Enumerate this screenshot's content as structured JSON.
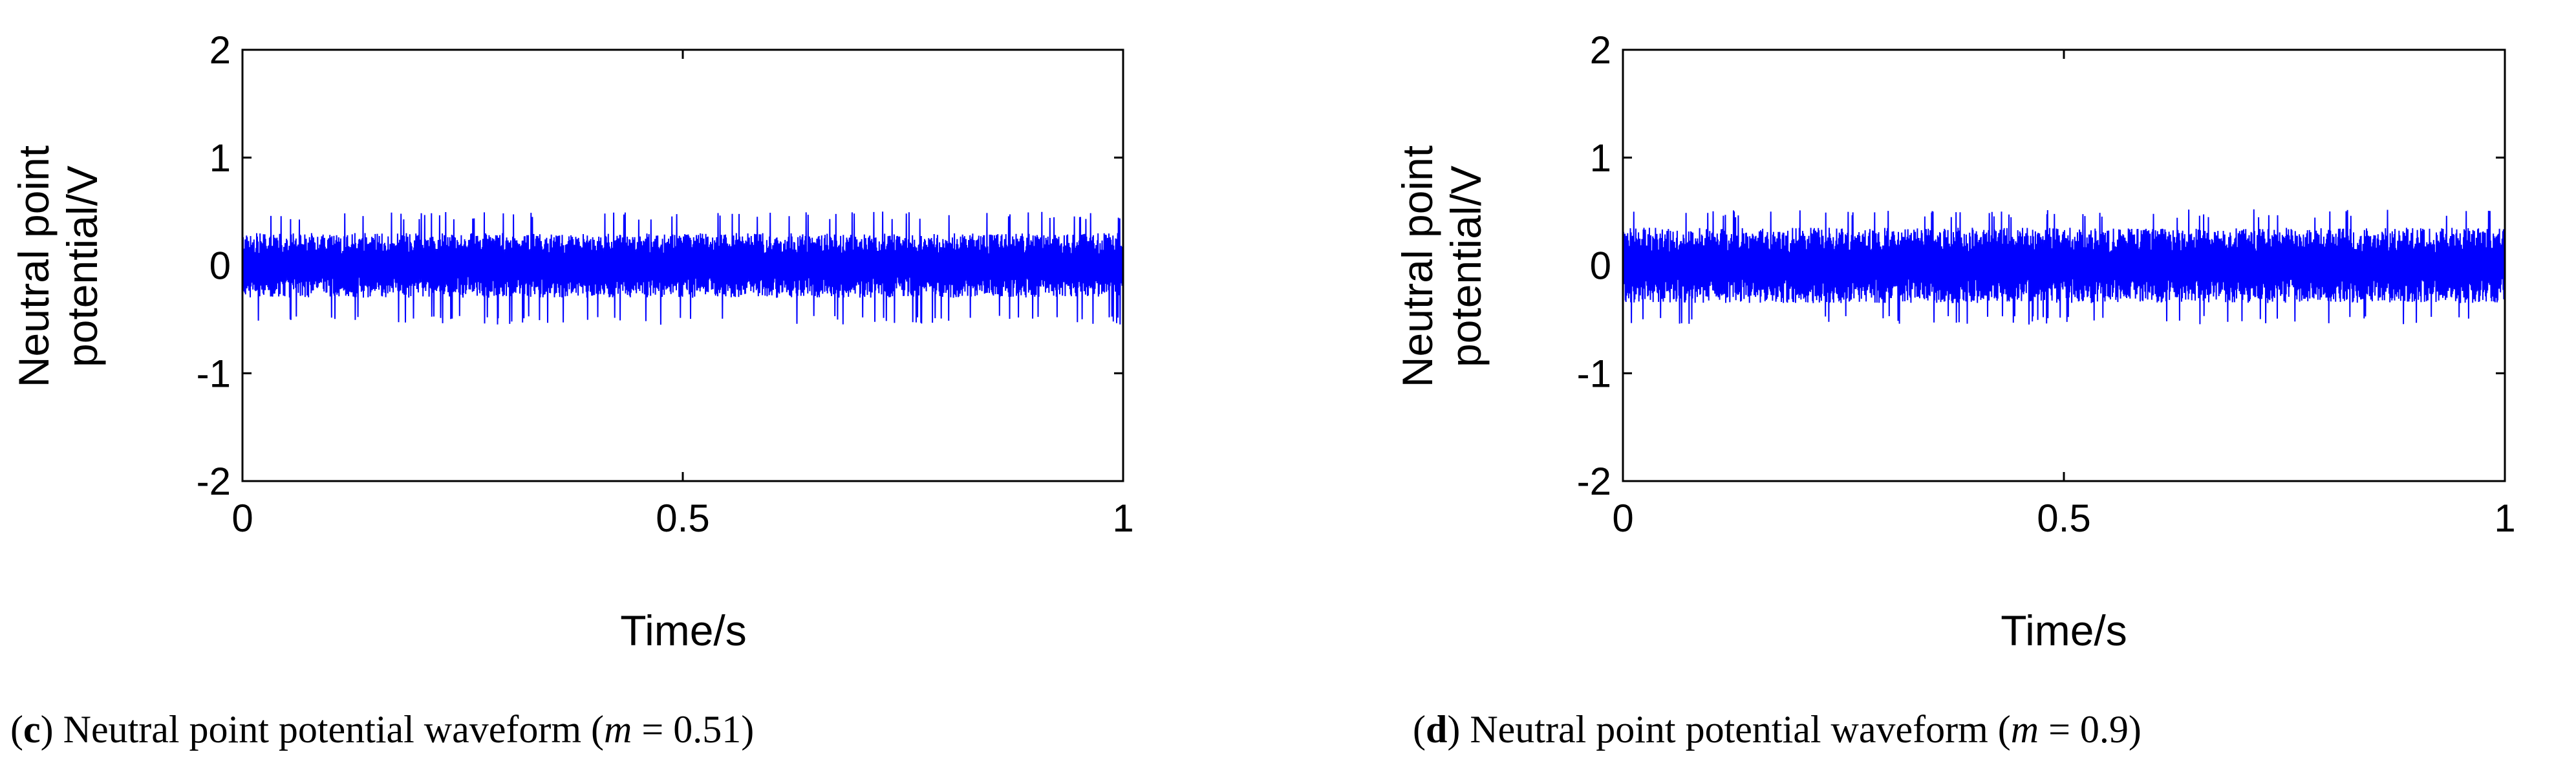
{
  "chart_data": [
    {
      "type": "line",
      "panel_letter": "c",
      "caption_text": " Neutral point potential waveform (",
      "caption_var": "m",
      "caption_value": " = 0.51)",
      "xlabel": "Time/s",
      "ylabel_line1": "Neutral point",
      "ylabel_line2": "potential/V",
      "xlim": [
        0,
        1
      ],
      "ylim": [
        -2,
        2
      ],
      "xticks": [
        0,
        0.5,
        1
      ],
      "xtick_labels": [
        "0",
        "0.5",
        "1"
      ],
      "yticks": [
        -2,
        -1,
        0,
        1,
        2
      ],
      "ytick_labels": [
        "-2",
        "-1",
        "0",
        "1",
        "2"
      ],
      "grid": false,
      "series": [
        {
          "color": "#0000ff",
          "waveform": "dense high-frequency oscillation about 0 V",
          "x_range": [
            0,
            1
          ],
          "typical_band": [
            -0.3,
            0.3
          ],
          "peak_max": 0.5,
          "peak_min": -0.55
        }
      ]
    },
    {
      "type": "line",
      "panel_letter": "d",
      "caption_text": " Neutral point potential waveform (",
      "caption_var": "m",
      "caption_value": " = 0.9)",
      "xlabel": "Time/s",
      "ylabel_line1": "Neutral point",
      "ylabel_line2": "potential/V",
      "xlim": [
        0,
        1
      ],
      "ylim": [
        -2,
        2
      ],
      "xticks": [
        0,
        0.5,
        1
      ],
      "xtick_labels": [
        "0",
        "0.5",
        "1"
      ],
      "yticks": [
        -2,
        -1,
        0,
        1,
        2
      ],
      "ytick_labels": [
        "-2",
        "-1",
        "0",
        "1",
        "2"
      ],
      "grid": false,
      "series": [
        {
          "color": "#0000ff",
          "waveform": "dense high-frequency oscillation about 0 V",
          "x_range": [
            0,
            1
          ],
          "typical_band": [
            -0.35,
            0.35
          ],
          "peak_max": 0.52,
          "peak_min": -0.55
        }
      ]
    }
  ]
}
